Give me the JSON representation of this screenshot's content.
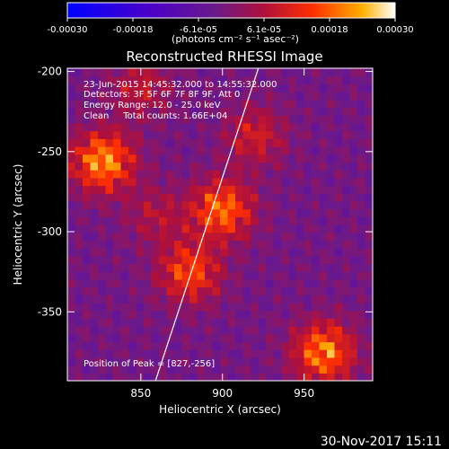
{
  "chart_data": {
    "type": "heatmap",
    "title": "Reconstructed RHESSI Image",
    "xlabel": "Heliocentric X (arcsec)",
    "ylabel": "Heliocentric Y (arcsec)",
    "xlim": [
      805,
      992
    ],
    "ylim": [
      -393,
      -198
    ],
    "xticks": [
      850,
      900,
      950
    ],
    "yticks": [
      -200,
      -250,
      -300,
      -350
    ],
    "colorbar": {
      "ticks": [
        "-0.00030",
        "-0.00018",
        "-6.1e-05",
        "6.1e-05",
        "0.00018",
        "0.00030"
      ],
      "range": [
        -0.0003,
        0.0003
      ],
      "unit_label": "(photons cm⁻² s⁻¹ asec⁻²)"
    },
    "annotations": [
      "23-Jun-2015 14:45:32.000 to 14:55:32.000",
      "Detectors: 3F 5F 6F 7F 8F 9F, Att 0",
      "Energy Range: 12.0 - 25.0 keV",
      "Clean     Total counts: 1.66E+04"
    ],
    "peak_label": "Position of Peak = [827,-256]",
    "hotspots": [
      {
        "x": 827,
        "y": -256,
        "value": 0.0003
      },
      {
        "x": 900,
        "y": -286,
        "value": 0.00026
      },
      {
        "x": 880,
        "y": -325,
        "value": 0.00022
      },
      {
        "x": 962,
        "y": -375,
        "value": 0.00028
      },
      {
        "x": 920,
        "y": -240,
        "value": 0.00014
      },
      {
        "x": 850,
        "y": -210,
        "value": 0.00012
      },
      {
        "x": 860,
        "y": -290,
        "value": 0.0001
      }
    ],
    "limb_line": [
      {
        "x": 859,
        "y": -393
      },
      {
        "x": 922,
        "y": -198
      }
    ]
  },
  "timestamp": "30-Nov-2017 15:11",
  "colors": {
    "background": "#000000",
    "text": "#ffffff"
  }
}
